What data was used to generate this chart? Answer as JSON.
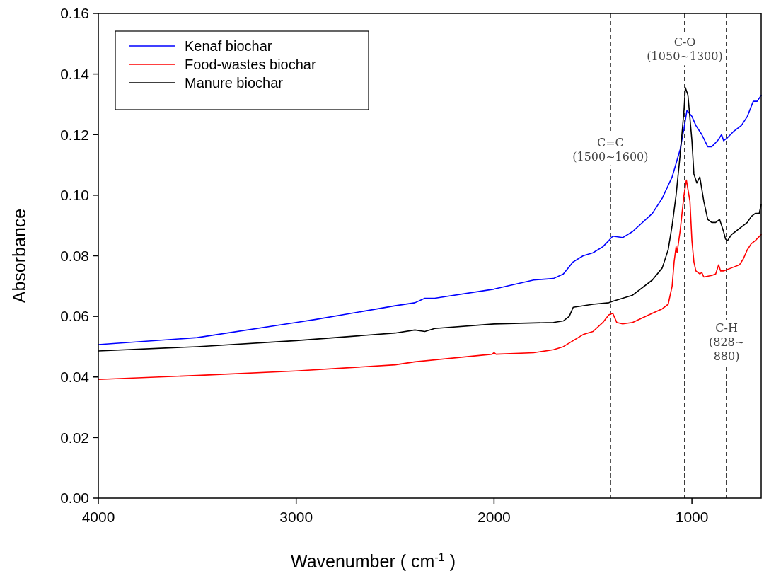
{
  "chart_data": {
    "type": "line",
    "xlabel": "Wavenumber ( cm$^{-1}$ )",
    "ylabel": "Absorbance",
    "xlim": [
      4000,
      650
    ],
    "ylim": [
      0,
      0.16
    ],
    "xticks": [
      4000,
      3000,
      2000,
      1000
    ],
    "yticks": [
      {
        "value": 0,
        "label": "0.00"
      },
      {
        "value": 0.02,
        "label": "0.02"
      },
      {
        "value": 0.04,
        "label": "0.04"
      },
      {
        "value": 0.06,
        "label": "0.06"
      },
      {
        "value": 0.08,
        "label": "0.08"
      },
      {
        "value": 0.1,
        "label": "0.10"
      },
      {
        "value": 0.12,
        "label": "0.12"
      },
      {
        "value": 0.14,
        "label": "0.14"
      },
      {
        "value": 0.16,
        "label": "0.16"
      }
    ],
    "grid": false,
    "legend": "top left",
    "line_style": "solid",
    "series": [
      {
        "name": "Kenaf biochar",
        "color": "#0000ff",
        "x": [
          4000,
          3500,
          3000,
          2900,
          2500,
          2400,
          2350,
          2300,
          2000,
          1800,
          1700,
          1650,
          1600,
          1550,
          1500,
          1450,
          1420,
          1400,
          1350,
          1300,
          1200,
          1150,
          1100,
          1060,
          1040,
          1025,
          1000,
          980,
          950,
          920,
          900,
          870,
          850,
          840,
          820,
          790,
          750,
          720,
          690,
          670,
          650
        ],
        "values": [
          0.0507,
          0.053,
          0.058,
          0.059,
          0.0635,
          0.0645,
          0.066,
          0.066,
          0.069,
          0.072,
          0.0725,
          0.074,
          0.078,
          0.08,
          0.081,
          0.083,
          0.085,
          0.0865,
          0.086,
          0.088,
          0.094,
          0.099,
          0.106,
          0.115,
          0.122,
          0.128,
          0.126,
          0.123,
          0.12,
          0.116,
          0.116,
          0.118,
          0.12,
          0.118,
          0.119,
          0.121,
          0.123,
          0.126,
          0.131,
          0.131,
          0.133
        ]
      },
      {
        "name": "Food-wastes biochar",
        "color": "#ff0000",
        "x": [
          4000,
          3500,
          3000,
          2500,
          2400,
          2010,
          2000,
          1990,
          1800,
          1700,
          1650,
          1600,
          1550,
          1500,
          1450,
          1420,
          1400,
          1380,
          1350,
          1300,
          1200,
          1150,
          1120,
          1100,
          1090,
          1080,
          1075,
          1060,
          1040,
          1028,
          1010,
          1000,
          990,
          980,
          960,
          950,
          940,
          900,
          880,
          865,
          855,
          840,
          820,
          800,
          760,
          740,
          720,
          700,
          680,
          650
        ],
        "values": [
          0.0392,
          0.0405,
          0.042,
          0.044,
          0.045,
          0.0475,
          0.048,
          0.0475,
          0.048,
          0.049,
          0.05,
          0.052,
          0.054,
          0.055,
          0.058,
          0.0605,
          0.061,
          0.058,
          0.0575,
          0.058,
          0.061,
          0.0625,
          0.064,
          0.07,
          0.078,
          0.083,
          0.081,
          0.088,
          0.1,
          0.105,
          0.098,
          0.085,
          0.078,
          0.075,
          0.074,
          0.0745,
          0.073,
          0.0735,
          0.074,
          0.077,
          0.075,
          0.075,
          0.0755,
          0.076,
          0.077,
          0.079,
          0.082,
          0.084,
          0.085,
          0.087
        ]
      },
      {
        "name": "Manure biochar",
        "color": "#000000",
        "x": [
          4000,
          3500,
          3000,
          2500,
          2400,
          2350,
          2300,
          2000,
          1700,
          1650,
          1620,
          1600,
          1500,
          1420,
          1400,
          1300,
          1200,
          1150,
          1120,
          1100,
          1080,
          1060,
          1040,
          1033,
          1020,
          1000,
          990,
          975,
          960,
          940,
          920,
          900,
          880,
          860,
          840,
          830,
          820,
          800,
          780,
          760,
          720,
          700,
          680,
          660,
          650
        ],
        "values": [
          0.0486,
          0.05,
          0.052,
          0.0545,
          0.0555,
          0.055,
          0.056,
          0.0575,
          0.058,
          0.0585,
          0.06,
          0.063,
          0.064,
          0.0645,
          0.065,
          0.067,
          0.072,
          0.076,
          0.082,
          0.09,
          0.1,
          0.113,
          0.128,
          0.1355,
          0.133,
          0.118,
          0.107,
          0.104,
          0.106,
          0.098,
          0.092,
          0.091,
          0.091,
          0.092,
          0.088,
          0.0855,
          0.085,
          0.087,
          0.088,
          0.089,
          0.091,
          0.093,
          0.094,
          0.094,
          0.097
        ]
      }
    ],
    "ref_lines": [
      {
        "axis": "x",
        "value": 1412,
        "color": "#000000",
        "line_style": "dashed"
      },
      {
        "axis": "x",
        "value": 1036,
        "color": "#000000",
        "line_style": "dashed"
      },
      {
        "axis": "x",
        "value": 825,
        "color": "#000000",
        "line_style": "dashed"
      }
    ],
    "annotations": [
      {
        "text": "C=C\n(1500~1600)",
        "x": 1412,
        "y": 0.115
      },
      {
        "text": "C-O\n(1050~1300)",
        "x": 1036,
        "y": 0.148
      },
      {
        "text": "C-H\n(828~\n880)",
        "x": 825,
        "y": 0.0514
      }
    ]
  }
}
